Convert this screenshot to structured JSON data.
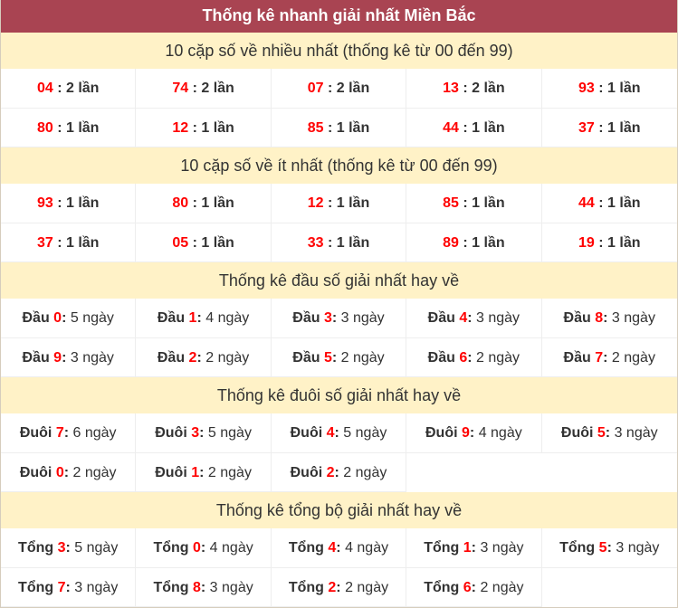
{
  "title": "Thống kê nhanh giải nhất Miền Bắc",
  "colors": {
    "header_bg": "#a94452",
    "section_bg": "#fff2c7",
    "highlight": "#ff0000"
  },
  "sections": [
    {
      "heading": "10 cặp số về nhiều nhất (thống kê từ 00 đến 99)",
      "kind": "pair",
      "items": [
        {
          "num": "04",
          "sep": " : ",
          "val": "2 lần"
        },
        {
          "num": "74",
          "sep": " : ",
          "val": "2 lần"
        },
        {
          "num": "07",
          "sep": " : ",
          "val": "2 lần"
        },
        {
          "num": "13",
          "sep": " : ",
          "val": "2 lần"
        },
        {
          "num": "93",
          "sep": " : ",
          "val": "1 lần"
        },
        {
          "num": "80",
          "sep": " : ",
          "val": "1 lần"
        },
        {
          "num": "12",
          "sep": " : ",
          "val": "1 lần"
        },
        {
          "num": "85",
          "sep": " : ",
          "val": "1 lần"
        },
        {
          "num": "44",
          "sep": " : ",
          "val": "1 lần"
        },
        {
          "num": "37",
          "sep": " : ",
          "val": "1 lần"
        }
      ]
    },
    {
      "heading": "10 cặp số về ít nhất (thống kê từ 00 đến 99)",
      "kind": "pair",
      "items": [
        {
          "num": "93",
          "sep": " : ",
          "val": "1 lần"
        },
        {
          "num": "80",
          "sep": " : ",
          "val": "1 lần"
        },
        {
          "num": "12",
          "sep": " : ",
          "val": "1 lần"
        },
        {
          "num": "85",
          "sep": " : ",
          "val": "1 lần"
        },
        {
          "num": "44",
          "sep": " : ",
          "val": "1 lần"
        },
        {
          "num": "37",
          "sep": " : ",
          "val": "1 lần"
        },
        {
          "num": "05",
          "sep": " : ",
          "val": "1 lần"
        },
        {
          "num": "33",
          "sep": " : ",
          "val": "1 lần"
        },
        {
          "num": "89",
          "sep": " : ",
          "val": "1 lần"
        },
        {
          "num": "19",
          "sep": " : ",
          "val": "1 lần"
        }
      ]
    },
    {
      "heading": "Thống kê đầu số giải nhất hay về",
      "kind": "stat",
      "items": [
        {
          "label": "Đầu ",
          "num": "0",
          "sep": ": ",
          "val": "5 ngày"
        },
        {
          "label": "Đầu ",
          "num": "1",
          "sep": ": ",
          "val": "4 ngày"
        },
        {
          "label": "Đầu ",
          "num": "3",
          "sep": ": ",
          "val": "3 ngày"
        },
        {
          "label": "Đầu ",
          "num": "4",
          "sep": ": ",
          "val": "3 ngày"
        },
        {
          "label": "Đầu ",
          "num": "8",
          "sep": ": ",
          "val": "3 ngày"
        },
        {
          "label": "Đầu ",
          "num": "9",
          "sep": ": ",
          "val": "3 ngày"
        },
        {
          "label": "Đầu ",
          "num": "2",
          "sep": ": ",
          "val": "2 ngày"
        },
        {
          "label": "Đầu ",
          "num": "5",
          "sep": ": ",
          "val": "2 ngày"
        },
        {
          "label": "Đầu ",
          "num": "6",
          "sep": ": ",
          "val": "2 ngày"
        },
        {
          "label": "Đầu ",
          "num": "7",
          "sep": ": ",
          "val": "2 ngày"
        }
      ]
    },
    {
      "heading": "Thống kê đuôi số giải nhất hay về",
      "kind": "stat",
      "items": [
        {
          "label": "Đuôi ",
          "num": "7",
          "sep": ": ",
          "val": "6 ngày"
        },
        {
          "label": "Đuôi ",
          "num": "3",
          "sep": ": ",
          "val": "5 ngày"
        },
        {
          "label": "Đuôi ",
          "num": "4",
          "sep": ": ",
          "val": "5 ngày"
        },
        {
          "label": "Đuôi ",
          "num": "9",
          "sep": ": ",
          "val": "4 ngày"
        },
        {
          "label": "Đuôi ",
          "num": "5",
          "sep": ": ",
          "val": "3 ngày"
        },
        {
          "label": "Đuôi ",
          "num": "0",
          "sep": ": ",
          "val": "2 ngày"
        },
        {
          "label": "Đuôi ",
          "num": "1",
          "sep": ": ",
          "val": "2 ngày"
        },
        {
          "label": "Đuôi ",
          "num": "2",
          "sep": ": ",
          "val": "2 ngày"
        }
      ]
    },
    {
      "heading": "Thống kê tổng bộ giải nhất hay về",
      "kind": "stat",
      "items": [
        {
          "label": "Tổng ",
          "num": "3",
          "sep": ": ",
          "val": "5 ngày"
        },
        {
          "label": "Tổng ",
          "num": "0",
          "sep": ": ",
          "val": "4 ngày"
        },
        {
          "label": "Tổng ",
          "num": "4",
          "sep": ": ",
          "val": "4 ngày"
        },
        {
          "label": "Tổng ",
          "num": "1",
          "sep": ": ",
          "val": "3 ngày"
        },
        {
          "label": "Tổng ",
          "num": "5",
          "sep": ": ",
          "val": "3 ngày"
        },
        {
          "label": "Tổng ",
          "num": "7",
          "sep": ": ",
          "val": "3 ngày"
        },
        {
          "label": "Tổng ",
          "num": "8",
          "sep": ": ",
          "val": "3 ngày"
        },
        {
          "label": "Tổng ",
          "num": "2",
          "sep": ": ",
          "val": "2 ngày"
        },
        {
          "label": "Tổng ",
          "num": "6",
          "sep": ": ",
          "val": "2 ngày"
        }
      ]
    }
  ]
}
